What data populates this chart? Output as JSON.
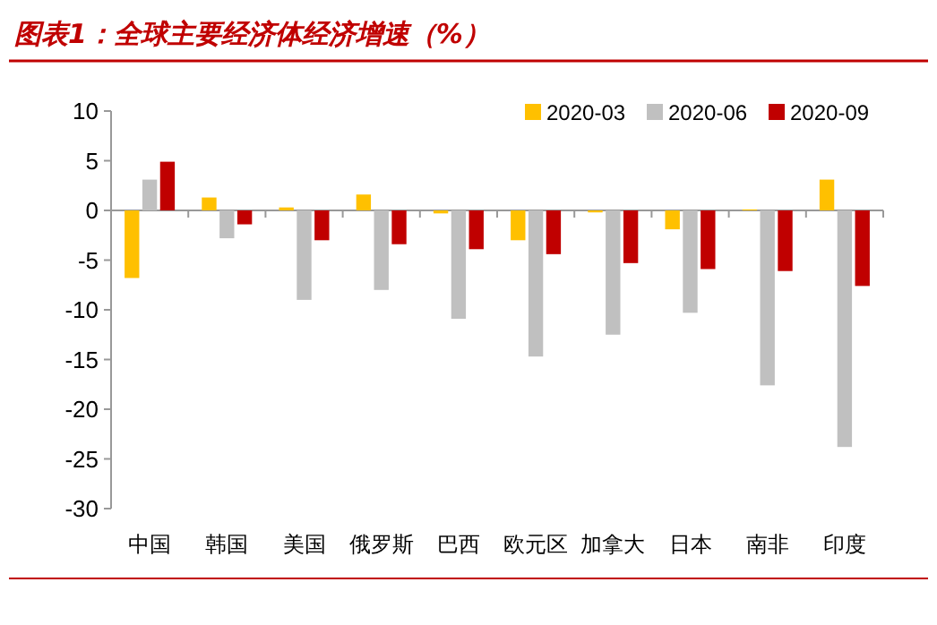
{
  "chart_data": {
    "type": "bar",
    "title": "图表1：全球主要经济体经济增速（%）",
    "categories": [
      "中国",
      "韩国",
      "美国",
      "俄罗斯",
      "巴西",
      "欧元区",
      "加拿大",
      "日本",
      "南非",
      "印度"
    ],
    "series": [
      {
        "name": "2020-03",
        "color": "#ffc000",
        "values": [
          -6.8,
          1.3,
          0.3,
          1.6,
          -0.3,
          -3.0,
          -0.2,
          -1.9,
          0.1,
          3.1
        ]
      },
      {
        "name": "2020-06",
        "color": "#c0c0c0",
        "values": [
          3.1,
          -2.8,
          -9.0,
          -8.0,
          -10.9,
          -14.7,
          -12.5,
          -10.3,
          -17.6,
          -23.8
        ]
      },
      {
        "name": "2020-09",
        "color": "#c00000",
        "values": [
          4.9,
          -1.4,
          -3.0,
          -3.4,
          -3.9,
          -4.4,
          -5.3,
          -5.9,
          -6.1,
          -7.6
        ]
      }
    ],
    "ylim": [
      -30,
      10
    ],
    "yticks": [
      10,
      5,
      0,
      -5,
      -10,
      -15,
      -20,
      -25,
      -30
    ],
    "legend": "top right"
  }
}
